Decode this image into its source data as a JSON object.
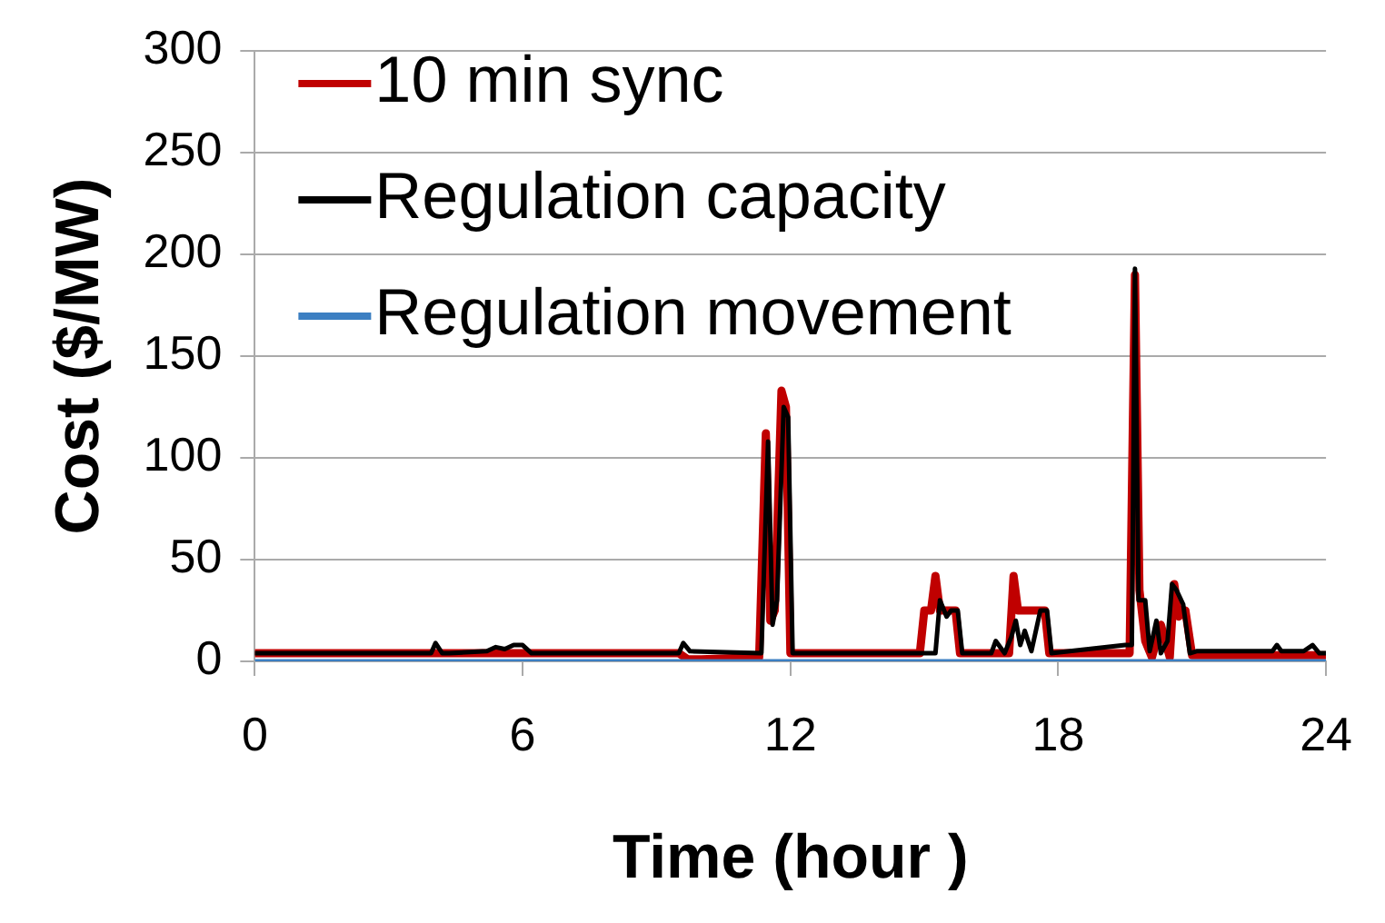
{
  "chart_data": {
    "type": "line",
    "xlabel": "Time (hour )",
    "ylabel": "Cost ($/MW)",
    "xlim": [
      0,
      24
    ],
    "xticks": [
      0,
      6,
      12,
      18,
      24
    ],
    "ylim": [
      0,
      300
    ],
    "yticks": [
      0,
      50,
      100,
      150,
      200,
      250,
      300
    ],
    "grid": "y",
    "legend": "top left",
    "marker": "none",
    "line_style": "solid",
    "series": [
      {
        "name": "10 min sync",
        "color": "#c00000",
        "x": [
          0,
          4,
          9.5,
          9.7,
          10,
          11.3,
          11.45,
          11.55,
          11.65,
          11.8,
          11.9,
          12.0,
          12.05,
          14.9,
          15.0,
          15.15,
          15.25,
          15.35,
          15.5,
          15.7,
          15.8,
          16.9,
          17.0,
          17.1,
          17.3,
          17.7,
          17.8,
          19.6,
          19.72,
          19.82,
          19.95,
          20.1,
          20.3,
          20.5,
          20.6,
          20.7,
          20.85,
          21.0,
          24
        ],
        "values": [
          4,
          4,
          4,
          1,
          1,
          2,
          112,
          20,
          25,
          133,
          125,
          4,
          4,
          4,
          25,
          25,
          42,
          25,
          25,
          25,
          4,
          4,
          42,
          25,
          25,
          25,
          4,
          4,
          190,
          35,
          10,
          2,
          18,
          2,
          38,
          22,
          25,
          3,
          3
        ]
      },
      {
        "name": "Regulation capacity",
        "color": "#000000",
        "x": [
          0,
          3.95,
          4.05,
          4.2,
          4.35,
          5.2,
          5.4,
          5.6,
          5.8,
          6.0,
          6.2,
          9.5,
          9.6,
          9.75,
          11.35,
          11.5,
          11.6,
          11.7,
          11.85,
          11.95,
          12.05,
          15.25,
          15.35,
          15.5,
          15.6,
          15.75,
          15.85,
          16.5,
          16.6,
          16.8,
          16.95,
          17.05,
          17.15,
          17.25,
          17.4,
          17.6,
          17.75,
          17.85,
          19.5,
          19.65,
          19.72,
          19.8,
          19.95,
          20.05,
          20.2,
          20.3,
          20.45,
          20.55,
          20.65,
          20.8,
          20.95,
          21.1,
          22.8,
          22.9,
          23.0,
          23.5,
          23.7,
          23.85,
          24
        ],
        "values": [
          4,
          4,
          9,
          4,
          4,
          5,
          7,
          6,
          8,
          8,
          4,
          4,
          9,
          5,
          4,
          108,
          18,
          30,
          125,
          120,
          4,
          4,
          30,
          22,
          25,
          25,
          4,
          4,
          10,
          4,
          12,
          20,
          8,
          15,
          5,
          25,
          25,
          4,
          8,
          8,
          193,
          30,
          30,
          5,
          20,
          4,
          10,
          38,
          35,
          28,
          4,
          5,
          5,
          8,
          5,
          5,
          8,
          4,
          4
        ]
      },
      {
        "name": "Regulation movement",
        "color": "#3c7fc2",
        "x": [
          0,
          24
        ],
        "values": [
          0,
          0
        ]
      }
    ]
  }
}
